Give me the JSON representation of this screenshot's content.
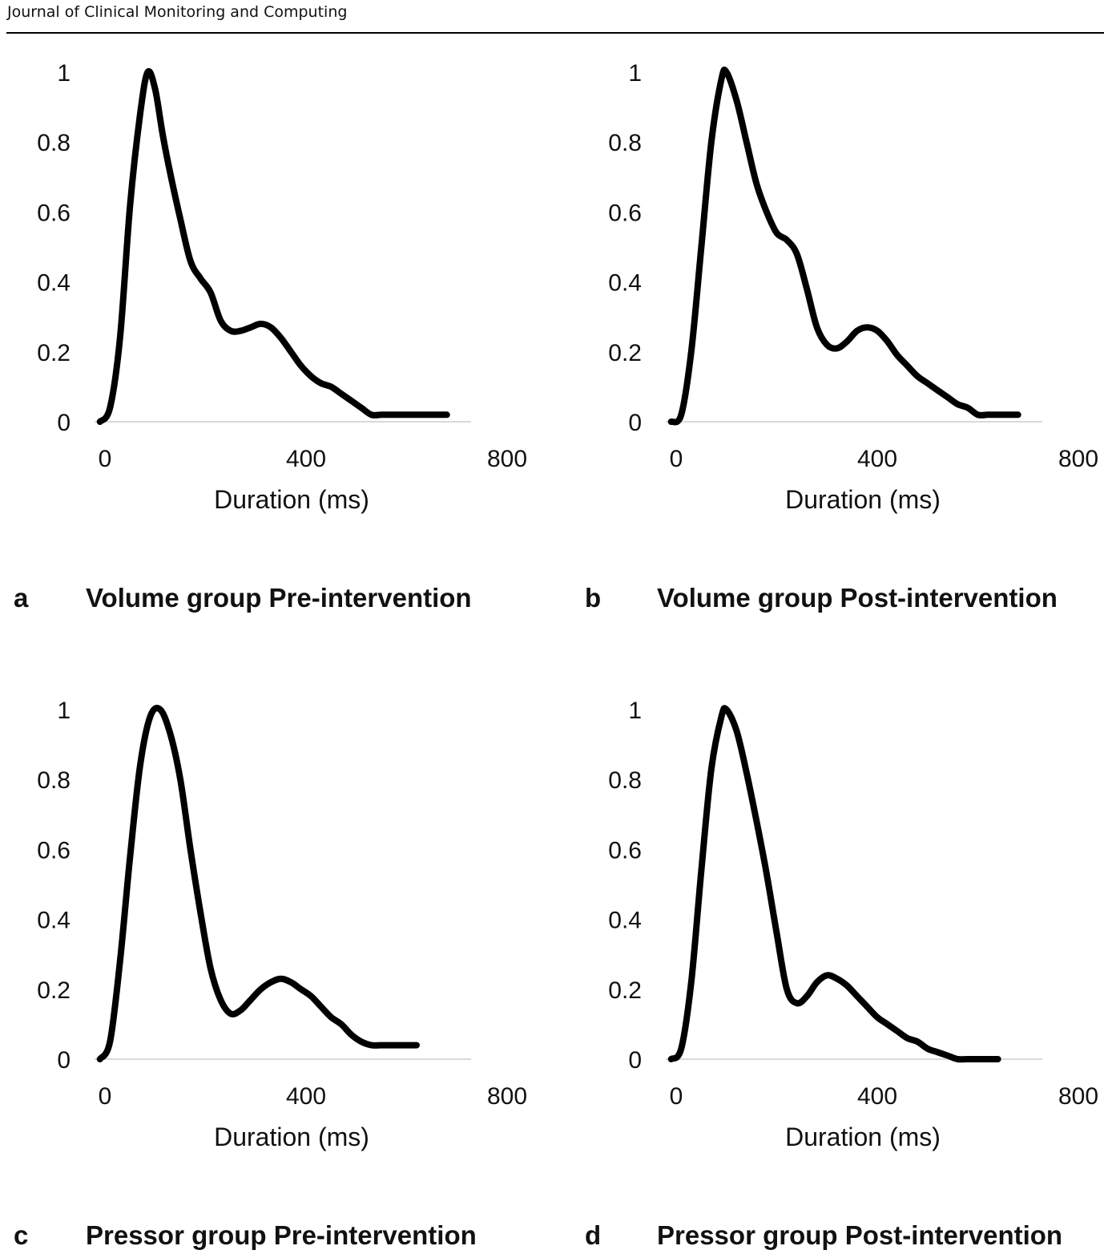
{
  "journal": "Journal of Clinical Monitoring and Computing",
  "chart_data": [
    {
      "type": "line",
      "panel": "a",
      "caption": "Volume group Pre-intervention",
      "xlabel": "Duration (ms)",
      "ylabel": "",
      "xlim": [
        0,
        800
      ],
      "ylim": [
        0,
        1
      ],
      "xticks": [
        "0",
        "400",
        "800"
      ],
      "yticks": [
        "0",
        "0.2",
        "0.4",
        "0.6",
        "0.8",
        "1"
      ],
      "grid": false,
      "legend": "none",
      "series": [
        {
          "color": "#000000",
          "x": [
            -10,
            10,
            30,
            50,
            70,
            85,
            100,
            115,
            130,
            150,
            170,
            190,
            210,
            230,
            250,
            270,
            290,
            310,
            330,
            350,
            370,
            390,
            410,
            430,
            450,
            470,
            490,
            510,
            530,
            550,
            570,
            590,
            610,
            630,
            650,
            670,
            680
          ],
          "y": [
            0.0,
            0.04,
            0.24,
            0.62,
            0.88,
            1.0,
            0.95,
            0.82,
            0.71,
            0.58,
            0.46,
            0.41,
            0.37,
            0.29,
            0.26,
            0.26,
            0.27,
            0.28,
            0.27,
            0.24,
            0.2,
            0.16,
            0.13,
            0.11,
            0.1,
            0.08,
            0.06,
            0.04,
            0.02,
            0.02,
            0.02,
            0.02,
            0.02,
            0.02,
            0.02,
            0.02,
            0.02
          ]
        }
      ]
    },
    {
      "type": "line",
      "panel": "b",
      "caption": "Volume group Post-intervention",
      "xlabel": "Duration (ms)",
      "ylabel": "",
      "xlim": [
        0,
        800
      ],
      "ylim": [
        0,
        1
      ],
      "xticks": [
        "0",
        "400",
        "800"
      ],
      "yticks": [
        "0",
        "0.2",
        "0.4",
        "0.6",
        "0.8",
        "1"
      ],
      "grid": false,
      "legend": "none",
      "series": [
        {
          "color": "#000000",
          "x": [
            -10,
            10,
            30,
            50,
            70,
            90,
            100,
            120,
            140,
            160,
            180,
            200,
            220,
            240,
            260,
            280,
            300,
            320,
            340,
            360,
            380,
            400,
            420,
            440,
            460,
            480,
            500,
            520,
            540,
            560,
            580,
            600,
            620,
            640,
            660,
            680
          ],
          "y": [
            0.0,
            0.02,
            0.2,
            0.5,
            0.8,
            0.98,
            1.0,
            0.92,
            0.8,
            0.68,
            0.6,
            0.54,
            0.52,
            0.48,
            0.38,
            0.27,
            0.22,
            0.21,
            0.23,
            0.26,
            0.27,
            0.26,
            0.23,
            0.19,
            0.16,
            0.13,
            0.11,
            0.09,
            0.07,
            0.05,
            0.04,
            0.02,
            0.02,
            0.02,
            0.02,
            0.02
          ]
        }
      ]
    },
    {
      "type": "line",
      "panel": "c",
      "caption": "Pressor group Pre-intervention",
      "xlabel": "Duration (ms)",
      "ylabel": "",
      "xlim": [
        0,
        800
      ],
      "ylim": [
        0,
        1
      ],
      "xticks": [
        "0",
        "400",
        "800"
      ],
      "yticks": [
        "0",
        "0.2",
        "0.4",
        "0.6",
        "0.8",
        "1"
      ],
      "grid": false,
      "legend": "none",
      "series": [
        {
          "color": "#000000",
          "x": [
            -10,
            10,
            30,
            50,
            70,
            90,
            110,
            130,
            150,
            170,
            190,
            210,
            230,
            250,
            270,
            290,
            310,
            330,
            350,
            370,
            390,
            410,
            430,
            450,
            470,
            490,
            510,
            530,
            550,
            570,
            590,
            610,
            620
          ],
          "y": [
            0.0,
            0.05,
            0.28,
            0.58,
            0.84,
            0.98,
            1.0,
            0.93,
            0.8,
            0.6,
            0.42,
            0.26,
            0.17,
            0.13,
            0.14,
            0.17,
            0.2,
            0.22,
            0.23,
            0.22,
            0.2,
            0.18,
            0.15,
            0.12,
            0.1,
            0.07,
            0.05,
            0.04,
            0.04,
            0.04,
            0.04,
            0.04,
            0.04
          ]
        }
      ]
    },
    {
      "type": "line",
      "panel": "d",
      "caption": "Pressor group Post-intervention",
      "xlabel": "Duration (ms)",
      "ylabel": "",
      "xlim": [
        0,
        800
      ],
      "ylim": [
        0,
        1
      ],
      "xticks": [
        "0",
        "400",
        "800"
      ],
      "yticks": [
        "0",
        "0.2",
        "0.4",
        "0.6",
        "0.8",
        "1"
      ],
      "grid": false,
      "legend": "none",
      "series": [
        {
          "color": "#000000",
          "x": [
            -10,
            10,
            30,
            50,
            70,
            90,
            100,
            120,
            140,
            160,
            180,
            200,
            220,
            240,
            260,
            280,
            300,
            320,
            340,
            360,
            380,
            400,
            420,
            440,
            460,
            480,
            500,
            520,
            540,
            560,
            580,
            600,
            620,
            640
          ],
          "y": [
            0.0,
            0.03,
            0.22,
            0.54,
            0.83,
            0.98,
            1.0,
            0.94,
            0.82,
            0.68,
            0.53,
            0.36,
            0.2,
            0.16,
            0.18,
            0.22,
            0.24,
            0.23,
            0.21,
            0.18,
            0.15,
            0.12,
            0.1,
            0.08,
            0.06,
            0.05,
            0.03,
            0.02,
            0.01,
            0.0,
            0.0,
            0.0,
            0.0,
            0.0
          ]
        }
      ]
    }
  ]
}
